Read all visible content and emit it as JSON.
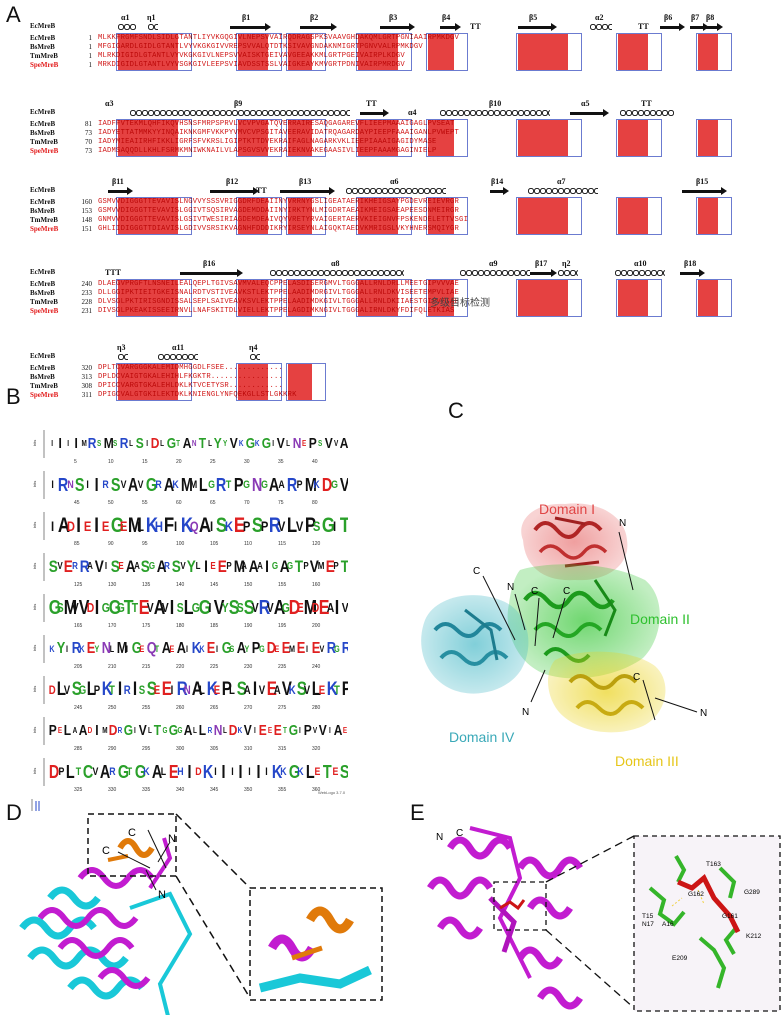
{
  "panels": {
    "A": "A",
    "B": "B",
    "C": "C",
    "D": "D",
    "E": "E"
  },
  "alignment": {
    "blocks": [
      {
        "ss_name": "EcMreB",
        "ss_labels": [
          "α1",
          "η1",
          "β1",
          "β2",
          "β3",
          "β4",
          "TT",
          "β5",
          "α2",
          "TT",
          "β6",
          "β7",
          "β8"
        ],
        "rows": [
          {
            "name": "EcMreB",
            "start": "1",
            "seq": "MLKKFRGMFSNDLSIDLGTANTLIYVKGQGIVLNEPSVVAIRQDRAGSPKSVAAVGHDAKQMLGRTPGNIAAIRPMKDGV",
            "red": false
          },
          {
            "name": "BsMreB",
            "start": "1",
            "seq": "MFGIGARDLGIDLGTANTLVYVKGKGIVVREPSVVALQTDTKSIVAVGNDAKNMIGRTPGNVVALRPMKDGV",
            "red": false
          },
          {
            "name": "TmMreB",
            "start": "1",
            "seq": "MLRKDIGIDLGTANTLVYVKGKGIVLNEPSVVAISKTGEIVAVGEEAKKMLGRTPGEIVAIRPLKDGV",
            "red": false
          },
          {
            "name": "SpeMreB",
            "start": "1",
            "seq": "MRKDIGIDLGTANTLVYVSGKGIVLEEPSVIAVDSSTSSLVAIGKEAYKMVGRTPDNIVAIRPMRDGV",
            "red": true
          }
        ]
      },
      {
        "ss_name": "EcMreB",
        "ss_labels": [
          "α3",
          "β9",
          "TT",
          "α4",
          "β10",
          "α5",
          "TT"
        ],
        "rows": [
          {
            "name": "EcMreB",
            "start": "81",
            "seq": "IADFFVTEKMLQHFIKQVHSNSFMRPSPRVLVCVPVGATQVERRAIRESAQGAGAREVFLIEEPMAAAIGAGLPVSEAT",
            "red": false
          },
          {
            "name": "BsMreB",
            "start": "73",
            "seq": "IADYETTATMMKYYINQAIKNKGMFVKKPYVMVCVPSGITAVEERAVIDATRQAGARDAYPIEEPFAAAIGANLPVWEPT",
            "red": false
          },
          {
            "name": "TmMreB",
            "start": "70",
            "seq": "IADYMIEAIIRHFIKKLIGRFSFVKRSLIGIPTKTTDVEKRAIFAGLNAGARKVKLIEEPIAAAIGAGIDYMASE",
            "red": false
          },
          {
            "name": "SpeMreB",
            "start": "73",
            "seq": "IADMSAQQDLLKHLFSRMKMNIWKNAILVLAPSGVSVVEKRAIEKNVAKEGAASIVLIEEPFAAAMGAGINIELP",
            "red": true
          }
        ]
      },
      {
        "ss_name": "EcMreB",
        "ss_labels": [
          "β11",
          "β12",
          "TT",
          "β13",
          "α6",
          "β14",
          "α7",
          "β15"
        ],
        "rows": [
          {
            "name": "EcMreB",
            "start": "160",
            "seq": "GSMVVDIGGGTTEVAVISLNGVVYSSSVRIGGDRFDEAIINYVRRNYGSLIGEATAERIKHEIGSAYPGDEVREIEVRGR",
            "red": false
          },
          {
            "name": "BsMreB",
            "start": "153",
            "seq": "GSMVVDIGGGTTEVAVISLGGIVTSQSIRVAGDEMDDAIINYIRKTYNLMIGDRTAEAIKMEIGSAEAPEESDNMEIRGR",
            "red": false
          },
          {
            "name": "TmMreB",
            "start": "148",
            "seq": "GNMVVDIGGGTTEVAVISLGSIVTWESIRIAGDEMDEAIVQYVRETYRVAIGERTAERVKIEIGNVFPSKENDELETTVSGI",
            "red": false
          },
          {
            "name": "SpeMreB",
            "start": "151",
            "seq": "GHLIIDIGGGTTDIAVISLGDIVVSRSIKVAGNHFDDDIKRYIRSEYNLAIGQKTAEDVKMRIGSLVKYHNERSMQIYGR",
            "red": true
          }
        ]
      },
      {
        "ss_name": "EcMreB",
        "ss_labels": [
          "TTT",
          "β16",
          "α8",
          "α9",
          "β17",
          "η2",
          "α10",
          "β18"
        ],
        "rows": [
          {
            "name": "EcMreB",
            "start": "240",
            "seq": "DLAEGVPRGFTLNSNEILEALQEPLTGIVSAVMVALEQCPPELASDISERGMVLTGGGALLRNLDRLLMEETGIPVVVAE",
            "red": false
          },
          {
            "name": "BsMreB",
            "start": "233",
            "seq": "DLLGGIPKTIEITGKEISNALRDTVSTIVEAVKSTLEKTPPELAADIMDRGIVLTGGGALLRNLDKVISEETEMPVLIAE",
            "red": false
          },
          {
            "name": "TmMreB",
            "start": "228",
            "seq": "DLVSGLPKTIRISGNDISSALSEPLSAIVEAVKSVLEKTPPELAADIMDKGIVLTGGGALLRNLDKIIAESTGIPVFIAE",
            "red": false
          },
          {
            "name": "SpeMreB",
            "start": "231",
            "seq": "DIVSGLPKEAKISSEEIRNVLLNAFSKITDLVIELLEKTPPELAGDIMKNGIVLTGGGALIRNLDKYFDIFQLETKIAS",
            "red": true
          }
        ]
      },
      {
        "ss_name": "EcMreB",
        "ss_labels": [
          "η3",
          "α11",
          "η4"
        ],
        "rows": [
          {
            "name": "EcMreB",
            "start": "320",
            "seq": "DPLTCVARGGGKALEMIDMHGGDLFSEE.............",
            "red": false
          },
          {
            "name": "BsMreB",
            "start": "313",
            "seq": "DPLDCVAIGTGKALEHIHLFKGKTR................",
            "red": false
          },
          {
            "name": "TmMreB",
            "start": "308",
            "seq": "DPICCVARGTGKALEHLDKLKTVCETYSR............",
            "red": false
          },
          {
            "name": "SpeMreB",
            "start": "311",
            "seq": "DPIGCVALGTGKILEKTDKLKNIENGLYNFQEKGLLSTLGKKRK",
            "red": true
          }
        ]
      }
    ],
    "overlay_text": "多级目标检测"
  },
  "logo": {
    "axis_label": "bits",
    "rows": [
      {
        "seq": "IIIIMRSMSRLSIDLGTANTLYYVKGKGIVLNEPSVVA",
        "ticks": [
          "5",
          "10",
          "15",
          "20",
          "25",
          "30",
          "35",
          "40"
        ]
      },
      {
        "seq": "IRNSIIRSVAVGRAKMMLGRTPGNGAARPMKDGV",
        "ticks": [
          "45",
          "50",
          "55",
          "60",
          "65",
          "70",
          "75",
          "80"
        ]
      },
      {
        "seq": "IADIEIEGEMLKHFIKQAISKEPSPRVLVPSGIT",
        "ticks": [
          "85",
          "90",
          "95",
          "100",
          "105",
          "110",
          "115",
          "120"
        ]
      },
      {
        "seq": "SVERRAVISEAASGARSVYLIEEPMAAAIGAGTPVMEPT",
        "ticks": [
          "125",
          "130",
          "135",
          "140",
          "145",
          "150",
          "155",
          "160"
        ]
      },
      {
        "seq": "GSMVVDIGGGTTEVAVISLGGIVYSSSVRVAGDEMDEAIV",
        "ticks": [
          "165",
          "170",
          "175",
          "180",
          "185",
          "190",
          "195",
          "200"
        ]
      },
      {
        "seq": "KYIRKEYNLMIGEQTAEAIKKEIGSAYPGDEEMEIEVRGR",
        "ticks": [
          "205",
          "210",
          "215",
          "220",
          "225",
          "230",
          "235",
          "240"
        ]
      },
      {
        "seq": "DLVSGLPKTIRISSEEIRNALKEPLSAIVEAVKSVLEKTP",
        "ticks": [
          "245",
          "250",
          "255",
          "260",
          "265",
          "270",
          "275",
          "280"
        ]
      },
      {
        "seq": "PELAADIMDRGIVLTGGGALLRNLDKVIEEETGIPVVIAE",
        "ticks": [
          "285",
          "290",
          "295",
          "300",
          "305",
          "310",
          "315",
          "320"
        ]
      },
      {
        "seq": "DPLTCVARGTGKALEHIDKIIIIIIIKKGKLETES",
        "ticks": [
          "325",
          "330",
          "335",
          "340",
          "345",
          "350",
          "355",
          "360"
        ]
      }
    ],
    "footer": "WebLogo 3.7.0"
  },
  "panel_c": {
    "domain_labels": [
      "Domain I",
      "Domain II",
      "Domain III",
      "Domain IV"
    ],
    "domain_colors": [
      "#e04545",
      "#2ec02e",
      "#e6c619",
      "#3aa9b8"
    ],
    "terminal_labels": [
      "N",
      "C",
      "N",
      "C",
      "C",
      "N",
      "C",
      "N"
    ]
  },
  "panel_d": {
    "labels": [
      "C",
      "C",
      "N",
      "N"
    ],
    "colors": {
      "magenta": "#c21cd0",
      "cyan": "#19c8d8",
      "orange": "#e07a0a"
    }
  },
  "panel_e": {
    "labels": [
      "N",
      "C"
    ],
    "residues": [
      "T163",
      "G289",
      "T15",
      "G162",
      "N17",
      "A16",
      "G161",
      "K212",
      "E209"
    ],
    "colors": {
      "magenta": "#c21cd0",
      "green": "#35b52a",
      "red": "#cc1515"
    }
  }
}
